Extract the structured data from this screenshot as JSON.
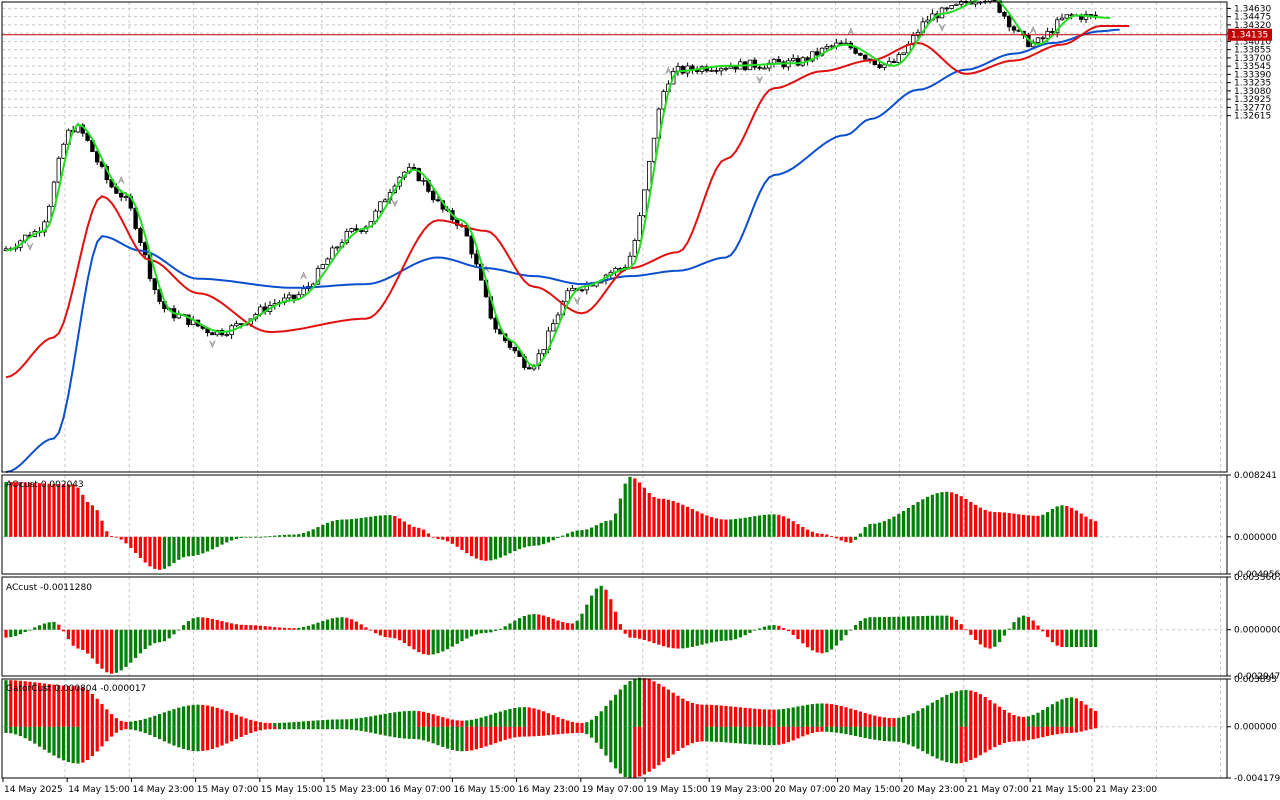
{
  "colors": {
    "up": "#008000",
    "down": "#ff0000",
    "jaw": "#0b4fcf",
    "teeth": "#e01010",
    "lips": "#22dd22",
    "grid": "#c8c8c8",
    "price_line": "#c00000",
    "fractal": "#808080"
  },
  "chart_data": [
    {
      "type": "candlestick",
      "symbol_price_line": 1.34135,
      "price_label": "1.34135",
      "ylim": [
        1.2592,
        1.3475
      ],
      "y_ticks": [
        "1.34630",
        "1.34475",
        "1.34320",
        "1.34165",
        "1.34010",
        "1.33855",
        "1.33700",
        "1.33545",
        "1.33390",
        "1.33235",
        "1.33080",
        "1.32925",
        "1.32770",
        "1.32615"
      ],
      "y_tick_values": [
        1.3463,
        1.34475,
        1.3432,
        1.34165,
        1.3401,
        1.33855,
        1.337,
        1.33545,
        1.3339,
        1.33235,
        1.3308,
        1.32925,
        1.3277,
        1.32615
      ],
      "series": [
        {
          "name": "Jaw",
          "anchors": [
            [
              0,
              1.2592
            ],
            [
              10,
              1.2655
            ],
            [
              20,
              1.3035
            ],
            [
              28,
              1.3008
            ],
            [
              40,
              1.2955
            ],
            [
              60,
              1.2938
            ],
            [
              75,
              1.2945
            ],
            [
              90,
              1.2995
            ],
            [
              100,
              1.2975
            ],
            [
              110,
              1.296
            ],
            [
              120,
              1.2945
            ],
            [
              130,
              1.296
            ],
            [
              140,
              1.297
            ],
            [
              150,
              1.2995
            ],
            [
              160,
              1.315
            ],
            [
              175,
              1.3225
            ],
            [
              180,
              1.3255
            ],
            [
              190,
              1.331
            ],
            [
              200,
              1.3348
            ],
            [
              210,
              1.3378
            ],
            [
              218,
              1.3398
            ],
            [
              228,
              1.342
            ],
            [
              232,
              1.3423
            ]
          ]
        },
        {
          "name": "Teeth",
          "anchors": [
            [
              0,
              1.277
            ],
            [
              10,
              1.2845
            ],
            [
              20,
              1.311
            ],
            [
              30,
              1.299
            ],
            [
              40,
              1.2928
            ],
            [
              55,
              1.2855
            ],
            [
              75,
              1.288
            ],
            [
              90,
              1.3065
            ],
            [
              100,
              1.3045
            ],
            [
              110,
              1.294
            ],
            [
              120,
              1.289
            ],
            [
              130,
              1.2975
            ],
            [
              140,
              1.3005
            ],
            [
              150,
              1.318
            ],
            [
              160,
              1.3313
            ],
            [
              170,
              1.3345
            ],
            [
              180,
              1.3365
            ],
            [
              190,
              1.3398
            ],
            [
              200,
              1.334
            ],
            [
              210,
              1.3365
            ],
            [
              220,
              1.3395
            ],
            [
              228,
              1.343
            ],
            [
              234,
              1.343
            ]
          ]
        },
        {
          "name": "Lips",
          "anchors": [
            [
              0,
              1.3008
            ],
            [
              8,
              1.3045
            ],
            [
              15,
              1.3245
            ],
            [
              25,
              1.3115
            ],
            [
              35,
              1.289
            ],
            [
              45,
              1.2855
            ],
            [
              60,
              1.2915
            ],
            [
              75,
              1.305
            ],
            [
              85,
              1.316
            ],
            [
              95,
              1.3065
            ],
            [
              105,
              1.284
            ],
            [
              110,
              1.279
            ],
            [
              120,
              1.294
            ],
            [
              130,
              1.2975
            ],
            [
              140,
              1.3345
            ],
            [
              150,
              1.3355
            ],
            [
              165,
              1.336
            ],
            [
              175,
              1.3395
            ],
            [
              185,
              1.3355
            ],
            [
              195,
              1.3453
            ],
            [
              205,
              1.3485
            ],
            [
              215,
              1.3395
            ],
            [
              223,
              1.345
            ],
            [
              230,
              1.3445
            ]
          ]
        }
      ],
      "candle_count": 228
    },
    {
      "type": "bar",
      "title": "AOcust 0.002043",
      "ylim": [
        -0.004956,
        0.008241
      ],
      "y_ticks": [
        "0.008241",
        "0.000000",
        "-0.004956"
      ],
      "y_tick_values": [
        0.008241,
        0,
        -0.004956
      ],
      "anchors": [
        [
          0,
          0.0073
        ],
        [
          14,
          0.007
        ],
        [
          18,
          0.0042
        ],
        [
          22,
          0.0001
        ],
        [
          32,
          -0.0044
        ],
        [
          38,
          -0.0026
        ],
        [
          50,
          -0.0001
        ],
        [
          60,
          0.0003
        ],
        [
          70,
          0.0023
        ],
        [
          80,
          0.0029
        ],
        [
          86,
          0.0012
        ],
        [
          90,
          -0.0003
        ],
        [
          100,
          -0.0032
        ],
        [
          110,
          -0.0012
        ],
        [
          120,
          0.0009
        ],
        [
          126,
          0.0022
        ],
        [
          130,
          0.008
        ],
        [
          136,
          0.0051
        ],
        [
          150,
          0.0023
        ],
        [
          160,
          0.003
        ],
        [
          170,
          0.0004
        ],
        [
          176,
          -0.0008
        ],
        [
          180,
          0.0017
        ],
        [
          196,
          0.006
        ],
        [
          206,
          0.0033
        ],
        [
          215,
          0.0028
        ],
        [
          220,
          0.0042
        ],
        [
          228,
          0.002
        ]
      ],
      "bar_count": 228
    },
    {
      "type": "bar",
      "title": "ACcust -0.0011280",
      "ylim": [
        -0.0029477,
        0.0033607
      ],
      "y_ticks": [
        "0.0033607",
        "0.0000000",
        "-0.0029477"
      ],
      "y_tick_values": [
        0.0033607,
        0,
        -0.0029477
      ],
      "anchors": [
        [
          0,
          -0.0005
        ],
        [
          10,
          0.0005
        ],
        [
          15,
          -0.0012
        ],
        [
          22,
          -0.0028
        ],
        [
          32,
          -0.0008
        ],
        [
          40,
          0.0008
        ],
        [
          50,
          0.0003
        ],
        [
          60,
          0.0001
        ],
        [
          70,
          0.0008
        ],
        [
          80,
          -0.0005
        ],
        [
          88,
          -0.0016
        ],
        [
          100,
          -0.0002
        ],
        [
          110,
          0.001
        ],
        [
          118,
          0.0004
        ],
        [
          124,
          0.0028
        ],
        [
          130,
          -0.0005
        ],
        [
          140,
          -0.0012
        ],
        [
          150,
          -0.0007
        ],
        [
          160,
          0.0003
        ],
        [
          170,
          -0.0015
        ],
        [
          180,
          0.0008
        ],
        [
          196,
          0.0009
        ],
        [
          205,
          -0.0012
        ],
        [
          212,
          0.0009
        ],
        [
          220,
          -0.0011
        ],
        [
          228,
          -0.0011
        ]
      ],
      "bar_count": 228
    },
    {
      "type": "bar",
      "title": "GatorCust 0.000804 -0.000017",
      "ylim": [
        -0.004179,
        0.003893
      ],
      "y_ticks": [
        "0.003893",
        "0.000000",
        "-0.004179"
      ],
      "y_tick_values": [
        0.003893,
        0,
        -0.004179
      ],
      "upper_anchors": [
        [
          0,
          0.0038
        ],
        [
          15,
          0.0033
        ],
        [
          25,
          0.0004
        ],
        [
          40,
          0.0018
        ],
        [
          55,
          0.0003
        ],
        [
          70,
          0.0006
        ],
        [
          85,
          0.0013
        ],
        [
          95,
          0.0005
        ],
        [
          108,
          0.0016
        ],
        [
          120,
          0.0003
        ],
        [
          132,
          0.004
        ],
        [
          145,
          0.0018
        ],
        [
          160,
          0.0014
        ],
        [
          170,
          0.0019
        ],
        [
          185,
          0.0007
        ],
        [
          200,
          0.003
        ],
        [
          212,
          0.0008
        ],
        [
          222,
          0.0024
        ],
        [
          228,
          0.0012
        ]
      ],
      "lower_anchors": [
        [
          0,
          -0.0005
        ],
        [
          15,
          -0.003
        ],
        [
          25,
          -0.0002
        ],
        [
          40,
          -0.002
        ],
        [
          55,
          -0.0002
        ],
        [
          70,
          -0.0002
        ],
        [
          85,
          -0.001
        ],
        [
          95,
          -0.002
        ],
        [
          108,
          -0.0008
        ],
        [
          120,
          -0.0005
        ],
        [
          130,
          -0.0042
        ],
        [
          145,
          -0.0012
        ],
        [
          160,
          -0.0015
        ],
        [
          170,
          -0.0004
        ],
        [
          185,
          -0.0012
        ],
        [
          198,
          -0.003
        ],
        [
          210,
          -0.0012
        ],
        [
          222,
          -0.0005
        ],
        [
          228,
          -0.0001
        ]
      ],
      "bar_count": 228
    }
  ],
  "x_axis": {
    "labels": [
      "14 May 2025",
      "14 May 15:00",
      "14 May 23:00",
      "15 May 07:00",
      "15 May 15:00",
      "15 May 23:00",
      "16 May 07:00",
      "16 May 15:00",
      "16 May 23:00",
      "19 May 07:00",
      "19 May 15:00",
      "19 May 23:00",
      "20 May 07:00",
      "20 May 15:00",
      "20 May 23:00",
      "21 May 07:00",
      "21 May 15:00",
      "21 May 23:00"
    ]
  }
}
